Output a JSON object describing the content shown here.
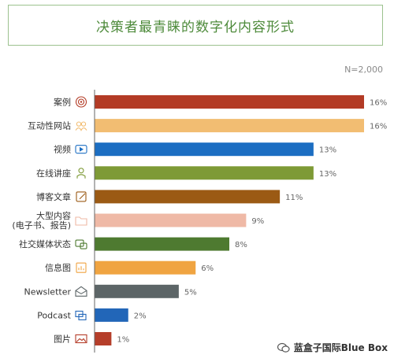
{
  "chart_data": {
    "type": "bar",
    "orientation": "horizontal",
    "title": "决策者最青睐的数字化内容形式",
    "note": "N=2,000",
    "value_suffix": "%",
    "categories": [
      [
        "案例"
      ],
      [
        "互动性网站"
      ],
      [
        "视频"
      ],
      [
        "在线讲座"
      ],
      [
        "博客文章"
      ],
      [
        "大型内容",
        "(电子书、报告)"
      ],
      [
        "社交媒体状态"
      ],
      [
        "信息图"
      ],
      [
        "Newsletter"
      ],
      [
        "Podcast"
      ],
      [
        "图片"
      ]
    ],
    "values": [
      16,
      16,
      13,
      13,
      11,
      9,
      8,
      6,
      5,
      2,
      1
    ],
    "colors": [
      "#b33b25",
      "#f2bd72",
      "#1c6ec2",
      "#7e9a36",
      "#9b5a14",
      "#efb9a6",
      "#4e7a30",
      "#f0a441",
      "#5c6567",
      "#2266b8",
      "#b53e2a"
    ],
    "icons": [
      "target-icon",
      "people-icon",
      "video-play-icon",
      "presenter-icon",
      "edit-icon",
      "folder-icon",
      "chat-icon",
      "chart-doc-icon",
      "envelope-icon",
      "windows-icon",
      "image-icon"
    ],
    "xlim": [
      0,
      16
    ]
  },
  "watermark": "蓝盒子国际Blue Box"
}
